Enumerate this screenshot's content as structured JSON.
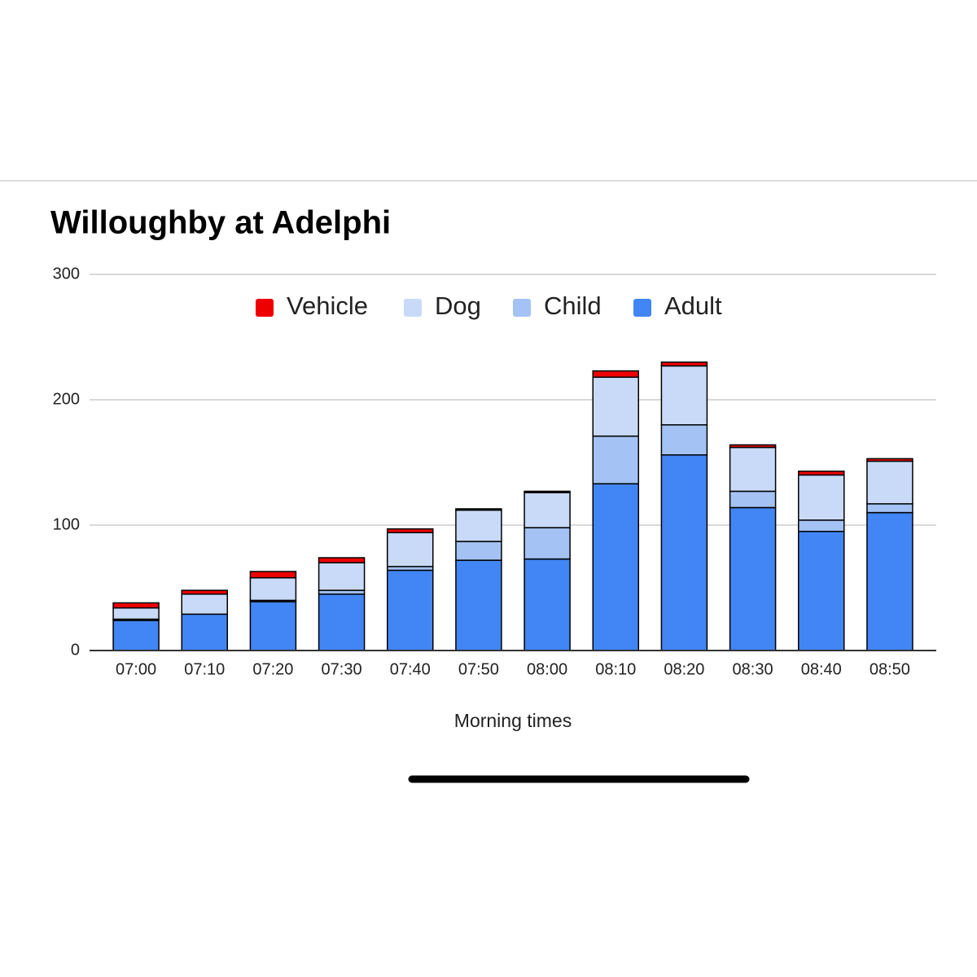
{
  "chart_data": {
    "type": "stacked-bar",
    "title": "Willoughby at Adelphi",
    "x_label": "Morning times",
    "categories": [
      "07:00",
      "07:10",
      "07:20",
      "07:30",
      "07:40",
      "07:50",
      "08:00",
      "08:10",
      "08:20",
      "08:30",
      "08:40",
      "08:50"
    ],
    "series": [
      {
        "name": "Vehicle",
        "color": "#ee0000",
        "values": [
          4,
          3,
          5,
          4,
          3,
          1,
          1,
          5,
          3,
          2,
          3,
          2
        ]
      },
      {
        "name": "Dog",
        "color": "#c9daf8",
        "values": [
          9,
          16,
          18,
          22,
          27,
          25,
          28,
          47,
          47,
          35,
          36,
          34
        ]
      },
      {
        "name": "Child",
        "color": "#a4c2f4",
        "values": [
          1,
          0,
          1,
          3,
          3,
          15,
          25,
          38,
          24,
          13,
          9,
          7
        ]
      },
      {
        "name": "Adult",
        "color": "#4285f4",
        "values": [
          24,
          29,
          39,
          45,
          64,
          72,
          73,
          133,
          156,
          114,
          95,
          110
        ]
      }
    ],
    "ylim": [
      0,
      300
    ],
    "yticks": [
      0,
      100,
      200,
      300
    ],
    "grid": true,
    "legend": "top"
  }
}
